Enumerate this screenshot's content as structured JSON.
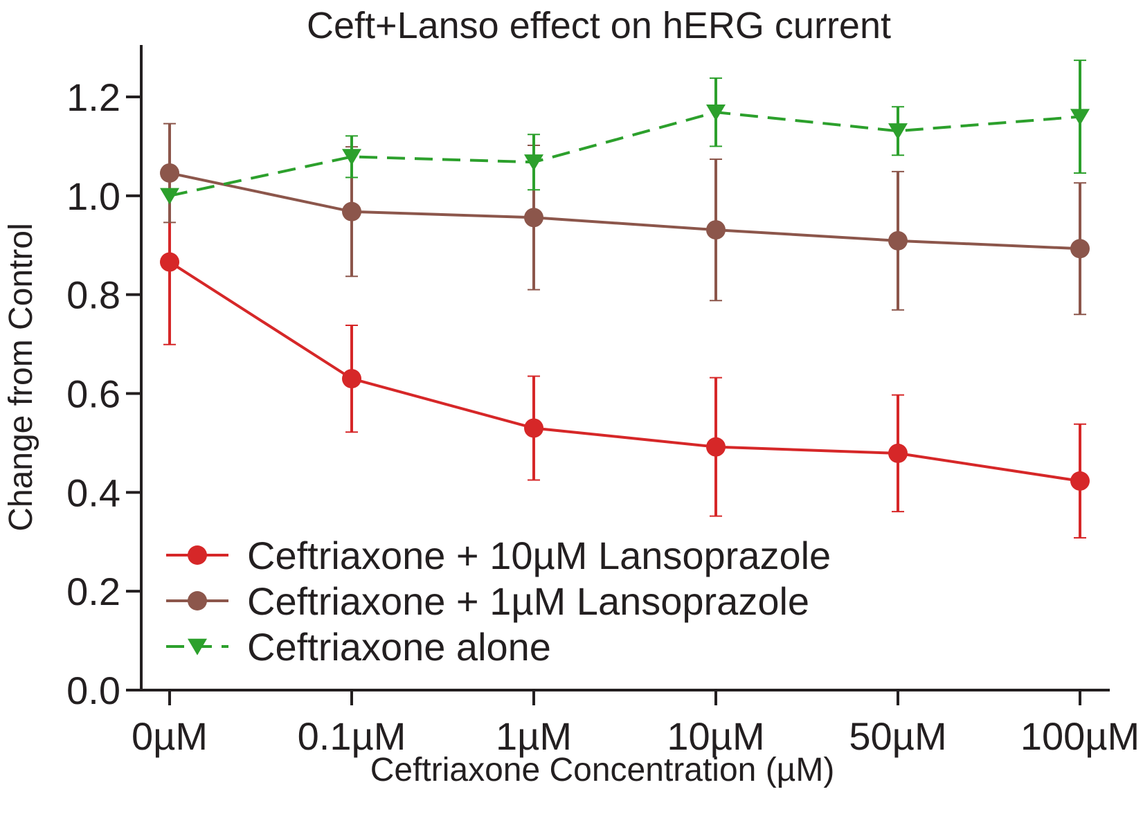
{
  "chart_data": {
    "type": "line",
    "title": "Ceft+Lanso effect on hERG current",
    "xlabel": "Ceftriaxone Concentration (µM)",
    "ylabel": "Change from Control",
    "categories": [
      "0µM",
      "0.1µM",
      "1µM",
      "10µM",
      "50µM",
      "100µM"
    ],
    "ylim": [
      0,
      1.2
    ],
    "yticks": [
      "0.0",
      "0.2",
      "0.4",
      "0.6",
      "0.8",
      "1.0",
      "1.2"
    ],
    "grid": false,
    "legend_position": "bottom-left",
    "series": [
      {
        "name": "Ceftriaxone + 10µM Lansoprazole",
        "color": "#d62728",
        "marker": "circle",
        "linestyle": "solid",
        "values": [
          0.866,
          0.63,
          0.53,
          0.492,
          0.479,
          0.423
        ],
        "errors": [
          0.167,
          0.108,
          0.105,
          0.14,
          0.118,
          0.115
        ]
      },
      {
        "name": "Ceftriaxone + 1µM Lansoprazole",
        "color": "#8c564b",
        "marker": "circle",
        "linestyle": "solid",
        "values": [
          1.046,
          0.968,
          0.956,
          0.931,
          0.909,
          0.893
        ],
        "errors": [
          0.1,
          0.131,
          0.146,
          0.143,
          0.14,
          0.133
        ]
      },
      {
        "name": "Ceftriaxone alone",
        "color": "#2ca02c",
        "marker": "triangle-down",
        "linestyle": "dashed",
        "values": [
          1.0,
          1.079,
          1.068,
          1.169,
          1.131,
          1.16
        ],
        "errors": [
          0.0,
          0.042,
          0.056,
          0.069,
          0.049,
          0.114
        ]
      }
    ]
  }
}
